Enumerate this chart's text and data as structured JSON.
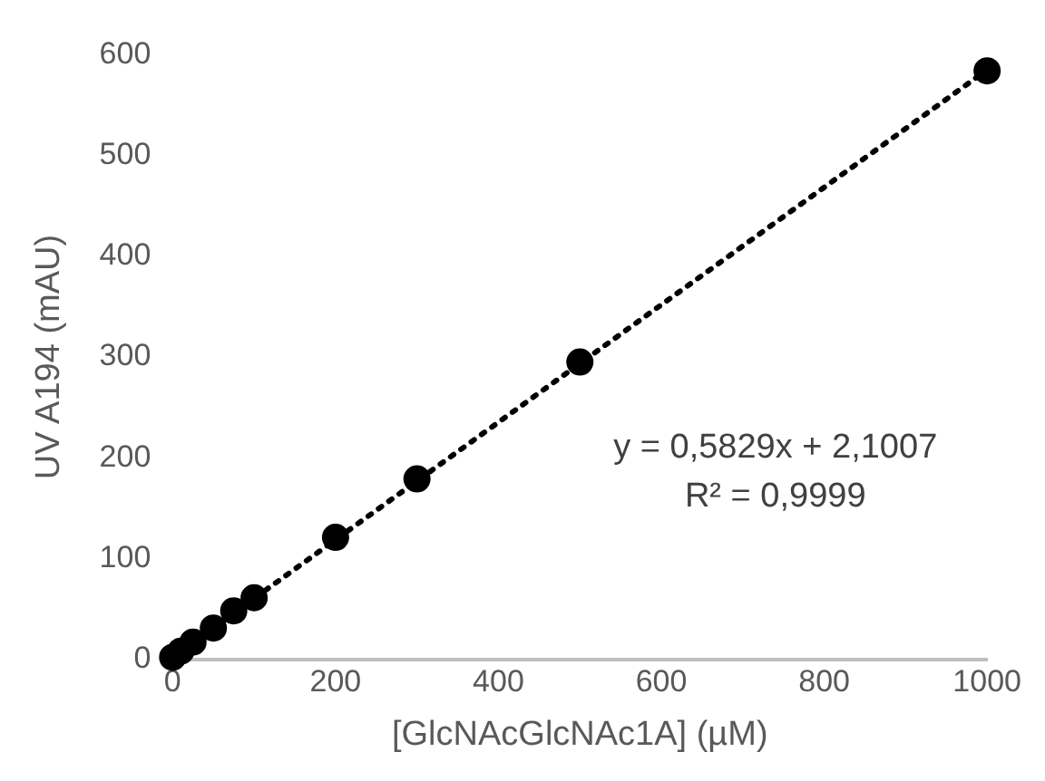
{
  "chart_data": {
    "type": "scatter",
    "xlabel": "[GlcNAcGlcNAc1A] (µM)",
    "ylabel": "UV A194 (mAU)",
    "x": [
      0,
      10,
      25,
      50,
      75,
      100,
      200,
      300,
      500,
      1000
    ],
    "series": [
      {
        "type": "scatter",
        "color": "#000000",
        "marker": "circle",
        "values": [
          2,
          8,
          17,
          31,
          48,
          61,
          121,
          179,
          295,
          584
        ]
      },
      {
        "type": "line",
        "color": "#000000",
        "x": [
          0,
          1000
        ],
        "values": [
          2,
          585
        ],
        "line_style": "dotted"
      }
    ],
    "xlim": [
      0,
      1000
    ],
    "xticks": [
      0,
      200,
      400,
      600,
      800,
      1000
    ],
    "ylim": [
      0,
      600
    ],
    "yticks": [
      0,
      100,
      200,
      300,
      400,
      500,
      600
    ],
    "grid": false,
    "annotations": [
      "y = 0,5829x + 2,1007",
      "R² = 0,9999"
    ]
  }
}
